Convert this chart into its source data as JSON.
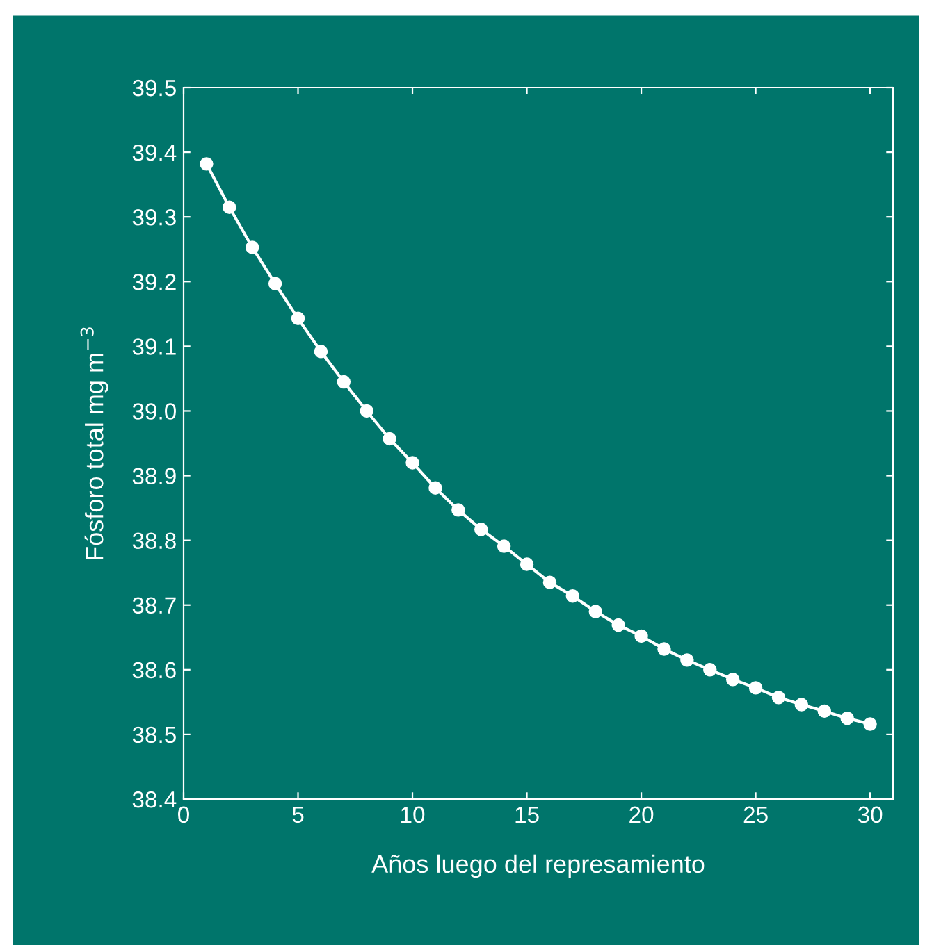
{
  "chart_data": {
    "type": "line",
    "xlabel": "Años luego del represamiento",
    "ylabel": "Fósforo total mg m$^{−3}$",
    "x": [
      1,
      2,
      3,
      4,
      5,
      6,
      7,
      8,
      9,
      10,
      11,
      12,
      13,
      14,
      15,
      16,
      17,
      18,
      19,
      20,
      21,
      22,
      23,
      24,
      25,
      26,
      27,
      28,
      29,
      30
    ],
    "series": [
      {
        "color": "#ffffff",
        "values": [
          39.382,
          39.315,
          39.253,
          39.197,
          39.143,
          39.092,
          39.045,
          39.0,
          38.957,
          38.92,
          38.881,
          38.847,
          38.817,
          38.791,
          38.763,
          38.735,
          38.714,
          38.69,
          38.669,
          38.652,
          38.632,
          38.615,
          38.6,
          38.585,
          38.572,
          38.557,
          38.546,
          38.536,
          38.525,
          38.516
        ]
      }
    ],
    "xlim": [
      0,
      31
    ],
    "xticks": [
      0,
      5,
      10,
      15,
      20,
      25,
      30
    ],
    "ylim": [
      38.4,
      39.5
    ],
    "yticks": [
      {
        "value": 38.4,
        "label": "38.4"
      },
      {
        "value": 38.5,
        "label": "38.5"
      },
      {
        "value": 38.6,
        "label": "38.6"
      },
      {
        "value": 38.7,
        "label": "38.7"
      },
      {
        "value": 38.8,
        "label": "38.8"
      },
      {
        "value": 38.9,
        "label": "38.9"
      },
      {
        "value": 39.0,
        "label": "39.0"
      },
      {
        "value": 39.1,
        "label": "39.1"
      },
      {
        "value": 39.2,
        "label": "39.2"
      },
      {
        "value": 39.3,
        "label": "39.3"
      },
      {
        "value": 39.4,
        "label": "39.4"
      },
      {
        "value": 39.5,
        "label": "39.5"
      }
    ],
    "marker": "circle",
    "line_style": "solid",
    "grid": false,
    "legend": false
  }
}
